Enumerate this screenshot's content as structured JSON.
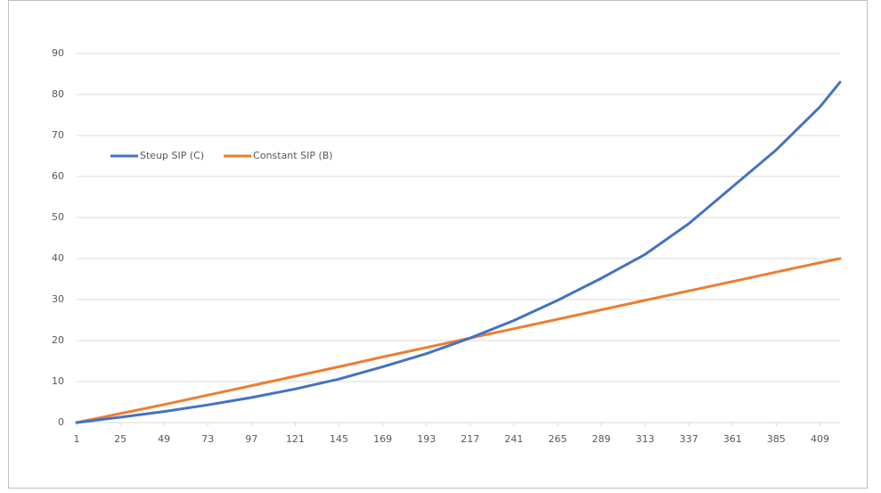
{
  "chart_data": {
    "type": "line",
    "x": [
      1,
      25,
      49,
      73,
      97,
      121,
      145,
      169,
      193,
      217,
      241,
      265,
      289,
      313,
      337,
      361,
      385,
      409,
      420
    ],
    "xlim": [
      1,
      420
    ],
    "xticks": [
      1,
      25,
      49,
      73,
      97,
      121,
      145,
      169,
      193,
      217,
      241,
      265,
      289,
      313,
      337,
      361,
      385,
      409
    ],
    "ylim": [
      0,
      90
    ],
    "yticks": [
      0,
      10,
      20,
      30,
      40,
      50,
      60,
      70,
      80,
      90
    ],
    "grid": true,
    "legend": "upper-left",
    "series": [
      {
        "name": "Steup SIP (C)",
        "color": "#4472c4",
        "values": [
          0,
          1.3,
          2.7,
          4.3,
          6.1,
          8.2,
          10.6,
          13.6,
          16.8,
          20.6,
          24.9,
          29.8,
          35.2,
          41.0,
          48.5,
          57.5,
          66.5,
          77.0,
          83.0
        ]
      },
      {
        "name": "Constant SIP (B)",
        "color": "#ed7d31",
        "values": [
          0,
          2.2,
          4.4,
          6.7,
          9.0,
          11.3,
          13.6,
          16.0,
          18.3,
          20.6,
          22.9,
          25.2,
          27.5,
          29.8,
          32.1,
          34.4,
          36.7,
          39.0,
          40.0
        ]
      }
    ]
  }
}
